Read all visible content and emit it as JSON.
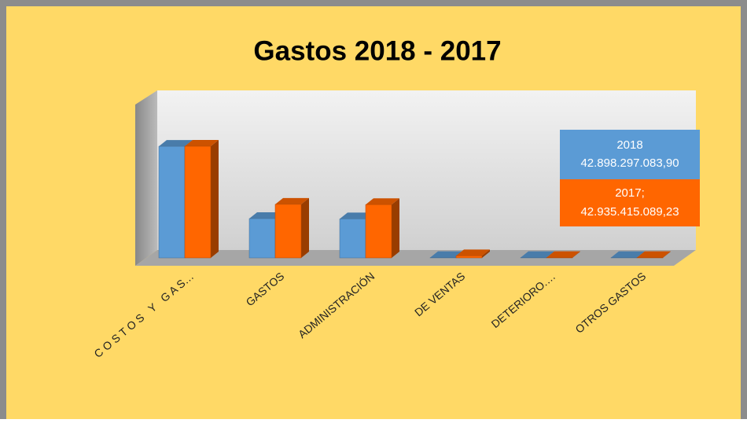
{
  "chart_data": {
    "type": "bar3d",
    "title": "Gastos  2018 - 2017",
    "categories": [
      "C O S T O S   Y   G A S…",
      "GASTOS",
      "ADMINISTRACIÓN",
      "DE VENTAS",
      "DETERIORO.…",
      "OTROS GASTOS"
    ],
    "series": [
      {
        "name": "2018",
        "color": "#5B9BD5",
        "values": [
          42898297083.9,
          15100000000,
          15000000000,
          100000000,
          100000000,
          100000000
        ],
        "value_labels": [
          "42.898.297.083,90",
          null,
          null,
          null,
          null,
          null
        ]
      },
      {
        "name": "2017",
        "color": "#FF6600",
        "values": [
          42935415089.23,
          20600000000,
          20500000000,
          800000000,
          100000000,
          100000000
        ],
        "value_labels": [
          "42.935.415.089,23",
          null,
          null,
          null,
          null,
          null
        ]
      }
    ],
    "data_label_titles": [
      "2018",
      "2017;"
    ]
  }
}
